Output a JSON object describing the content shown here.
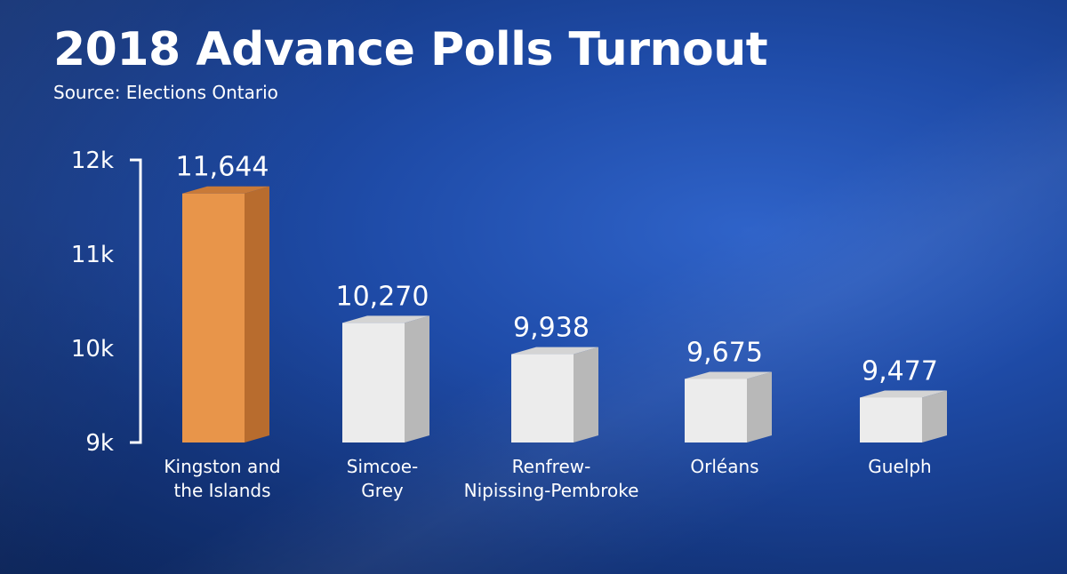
{
  "header": {
    "title": "2018 Advance Polls Turnout",
    "subtitle": "Source: Elections Ontario"
  },
  "chart_data": {
    "type": "bar",
    "title": "2018 Advance Polls Turnout",
    "subtitle": "Source: Elections Ontario",
    "categories": [
      [
        "Kingston and",
        "the Islands"
      ],
      [
        "Simcoe-",
        "Grey"
      ],
      [
        "Renfrew-",
        "Nipissing-Pembroke"
      ],
      [
        "Orléans"
      ],
      [
        "Guelph"
      ]
    ],
    "values": [
      11644,
      10270,
      9938,
      9675,
      9477
    ],
    "value_labels": [
      "11,644",
      "10,270",
      "9,938",
      "9,675",
      "9,477"
    ],
    "highlight_index": 0,
    "colors": {
      "highlight": "#e8954a",
      "highlight_side": "#b86c2e",
      "highlight_top": "#c97a38",
      "bar": "#ececec",
      "bar_side": "#b8b8b8",
      "bar_top": "#d4d4d4"
    },
    "yticks": [
      {
        "value": 9000,
        "label": "9k"
      },
      {
        "value": 10000,
        "label": "10k"
      },
      {
        "value": 11000,
        "label": "11k"
      },
      {
        "value": 12000,
        "label": "12k"
      }
    ],
    "grid": false,
    "legend": false
  }
}
